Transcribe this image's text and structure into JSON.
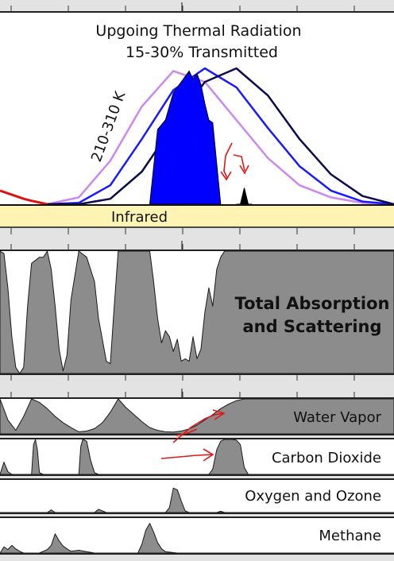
{
  "chart_data": [
    {
      "type": "line",
      "title": "Upgoing Thermal Radiation",
      "subtitle": "15-30% Transmitted",
      "band_label": "Infrared",
      "annotation": "210-310 K",
      "xlim": [
        0,
        100
      ],
      "ylim": [
        0,
        1
      ],
      "series": [
        {
          "color": "#cc88ee",
          "x": [
            12,
            20,
            28,
            36,
            44,
            52,
            60,
            68,
            76,
            84,
            92,
            100
          ],
          "y": [
            0.0,
            0.05,
            0.32,
            0.72,
            0.98,
            0.9,
            0.62,
            0.34,
            0.14,
            0.05,
            0.01,
            0.0
          ]
        },
        {
          "color": "#1a1aff",
          "x": [
            12,
            20,
            28,
            36,
            44,
            52,
            60,
            68,
            76,
            84,
            92,
            100
          ],
          "y": [
            0.0,
            0.01,
            0.14,
            0.48,
            0.84,
            1.0,
            0.86,
            0.56,
            0.28,
            0.1,
            0.02,
            0.0
          ]
        },
        {
          "color": "#0b0b4d",
          "x": [
            12,
            20,
            28,
            36,
            44,
            52,
            60,
            68,
            76,
            84,
            92,
            100
          ],
          "y": [
            0.0,
            0.0,
            0.04,
            0.24,
            0.58,
            0.9,
            1.0,
            0.8,
            0.48,
            0.22,
            0.06,
            0.0
          ]
        },
        {
          "color": "#dd1111",
          "x": [
            0,
            2,
            4,
            6,
            8,
            10,
            12
          ],
          "y": [
            0.1,
            0.08,
            0.06,
            0.04,
            0.025,
            0.012,
            0.0
          ]
        },
        {
          "color": "#0000ff",
          "x": [
            38,
            40,
            42,
            44,
            46,
            47,
            48,
            49,
            50,
            51,
            52,
            53,
            54,
            55,
            56
          ],
          "y": [
            0.0,
            0.55,
            0.62,
            0.82,
            0.9,
            0.94,
            0.98,
            0.92,
            0.96,
            0.88,
            0.74,
            0.62,
            0.6,
            0.3,
            0.0
          ]
        },
        {
          "color": "#000000",
          "x": [
            60,
            61,
            62,
            63,
            64
          ],
          "y": [
            0.0,
            0.0,
            0.12,
            0.0,
            0.0
          ]
        }
      ],
      "grid": false,
      "legend": "none"
    },
    {
      "type": "area",
      "label_line1": "Total Absorption",
      "label_line2": "and Scattering",
      "color": "#8c8c8c",
      "xlim": [
        0,
        100
      ],
      "ylim": [
        0,
        1
      ],
      "x": [
        0,
        1,
        2,
        3,
        4,
        5,
        6,
        7,
        8,
        10,
        11,
        12,
        13,
        14,
        15,
        16,
        17,
        18,
        20,
        22,
        24,
        25,
        27,
        28,
        29,
        30,
        32,
        34,
        36,
        38,
        39,
        40,
        41,
        42,
        43,
        44,
        45,
        46,
        47,
        48,
        49,
        50,
        51,
        52,
        53,
        54,
        55,
        56,
        57,
        58,
        59,
        60,
        61,
        62,
        64,
        66,
        68,
        100
      ],
      "y": [
        1.0,
        0.98,
        0.7,
        0.3,
        0.05,
        0.0,
        0.05,
        0.55,
        0.9,
        0.95,
        0.95,
        1.0,
        0.85,
        0.55,
        0.2,
        0.02,
        0.15,
        0.6,
        1.0,
        0.95,
        0.75,
        0.45,
        0.1,
        0.08,
        0.55,
        1.0,
        1.0,
        1.0,
        1.0,
        1.0,
        0.75,
        0.45,
        0.25,
        0.35,
        0.3,
        0.18,
        0.28,
        0.1,
        0.12,
        0.1,
        0.3,
        0.12,
        0.2,
        0.5,
        0.7,
        0.55,
        0.85,
        0.95,
        1.0,
        1.0,
        1.0,
        1.0,
        1.0,
        1.0,
        1.0,
        1.0,
        1.0,
        1.0
      ]
    },
    {
      "type": "area",
      "label": "Water Vapor",
      "color": "#8c8c8c",
      "xlim": [
        0,
        100
      ],
      "ylim": [
        0,
        1
      ],
      "x": [
        0,
        2,
        4,
        6,
        8,
        10,
        12,
        14,
        16,
        18,
        20,
        22,
        24,
        26,
        28,
        30,
        32,
        34,
        36,
        38,
        40,
        42,
        44,
        46,
        48,
        50,
        52,
        54,
        56,
        58,
        60,
        62,
        64,
        66,
        70,
        100
      ],
      "y": [
        1.0,
        0.4,
        0.1,
        0.5,
        1.0,
        0.9,
        0.72,
        0.5,
        0.32,
        0.18,
        0.06,
        0.08,
        0.15,
        0.32,
        0.62,
        1.0,
        0.75,
        0.55,
        0.35,
        0.18,
        0.1,
        0.06,
        0.05,
        0.08,
        0.14,
        0.25,
        0.4,
        0.55,
        0.72,
        0.85,
        0.95,
        1.0,
        1.0,
        1.0,
        1.0,
        1.0
      ]
    },
    {
      "type": "area",
      "label": "Carbon Dioxide",
      "color": "#8c8c8c",
      "xlim": [
        0,
        100
      ],
      "ylim": [
        0,
        1
      ],
      "x": [
        0,
        1,
        2,
        3,
        8,
        8.5,
        9,
        9.5,
        10,
        11,
        20,
        20.5,
        21,
        22,
        23,
        24,
        25,
        53,
        54,
        55,
        56,
        57,
        58,
        59,
        60,
        61,
        62,
        63,
        100
      ],
      "y": [
        0.0,
        0.35,
        0.08,
        0.0,
        0.0,
        0.85,
        1.0,
        0.7,
        0.05,
        0.0,
        0.0,
        0.8,
        1.0,
        0.95,
        0.4,
        0.05,
        0.0,
        0.0,
        0.15,
        0.7,
        0.95,
        1.0,
        1.0,
        1.0,
        0.98,
        0.85,
        0.2,
        0.0,
        0.0
      ]
    },
    {
      "type": "area",
      "label": "Oxygen and Ozone",
      "color": "#8c8c8c",
      "xlim": [
        0,
        100
      ],
      "ylim": [
        0,
        1
      ],
      "x": [
        0,
        12,
        13,
        14,
        24,
        25,
        26,
        27,
        28,
        29,
        30,
        31,
        32,
        33,
        34,
        35,
        36,
        42,
        43,
        44,
        45,
        46,
        47,
        48,
        49,
        55,
        56,
        57,
        100
      ],
      "y": [
        0.0,
        0.0,
        0.08,
        0.0,
        0.0,
        0.1,
        0.05,
        0.0,
        0.0,
        0.0,
        0.0,
        0.0,
        0.0,
        0.0,
        0.0,
        0.0,
        0.0,
        0.0,
        0.15,
        0.75,
        0.7,
        0.35,
        0.05,
        0.0,
        0.0,
        0.0,
        0.04,
        0.0,
        0.0
      ]
    },
    {
      "type": "area",
      "label": "Methane",
      "color": "#8c8c8c",
      "xlim": [
        0,
        100
      ],
      "ylim": [
        0,
        1
      ],
      "x": [
        0,
        1,
        2,
        3,
        4,
        5,
        6,
        10,
        12,
        13,
        14,
        15,
        16,
        17,
        18,
        20,
        22,
        24,
        26,
        30,
        35,
        36,
        37,
        38,
        39,
        40,
        41,
        42,
        45,
        100
      ],
      "y": [
        0.0,
        0.18,
        0.1,
        0.22,
        0.12,
        0.05,
        0.0,
        0.0,
        0.1,
        0.22,
        0.55,
        0.35,
        0.2,
        0.12,
        0.05,
        0.08,
        0.04,
        0.0,
        0.0,
        0.0,
        0.0,
        0.25,
        0.65,
        0.85,
        0.6,
        0.3,
        0.12,
        0.04,
        0.0,
        0.0
      ]
    }
  ],
  "colors": {
    "band_fill": "#fdf4b4",
    "panel_bg": "#ffffff",
    "separator": "#e3e3e3",
    "frame": "#222222",
    "overlay_arrows": "#e01818"
  }
}
